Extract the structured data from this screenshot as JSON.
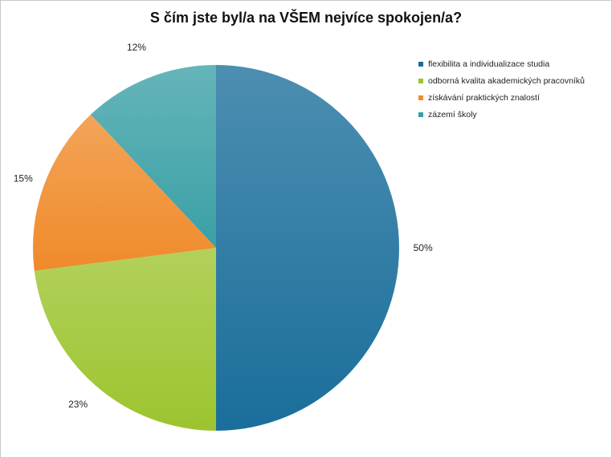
{
  "chart_data": {
    "type": "pie",
    "title": "S čím jste byl/a na VŠEM nejvíce spokojen/a?",
    "categories": [
      "flexibilita a individualizace studia",
      "odborná kvalita akademických pracovníků",
      "získávání praktických znalostí",
      "zázemí školy"
    ],
    "values": [
      50,
      23,
      15,
      12
    ],
    "data_labels": [
      "50%",
      "23%",
      "15%",
      "12%"
    ],
    "colors": [
      "#1a6e9b",
      "#9cc42e",
      "#f08a2a",
      "#3aa0a5"
    ],
    "legend_position": "right"
  }
}
